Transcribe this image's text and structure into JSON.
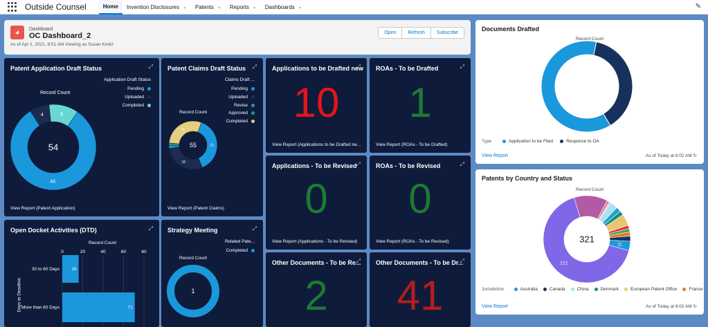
{
  "topbar": {
    "app_name": "Outside Counsel",
    "nav": [
      {
        "label": "Home",
        "active": true,
        "has_menu": false
      },
      {
        "label": "Invention Disclosures",
        "active": false,
        "has_menu": true
      },
      {
        "label": "Patents",
        "active": false,
        "has_menu": true
      },
      {
        "label": "Reports",
        "active": false,
        "has_menu": true
      },
      {
        "label": "Dashboards",
        "active": false,
        "has_menu": true
      }
    ],
    "icons": {
      "app_launcher": "app-launcher-grid-icon",
      "edit": "pencil-icon"
    }
  },
  "header": {
    "label": "Dashboard",
    "title": "OC Dashboard_2",
    "subtitle": "As of Apr 1, 2021, 8:51 AM Viewing as Susan Kreitz",
    "buttons": {
      "open": "Open",
      "refresh": "Refresh",
      "subscribe": "Subscribe"
    }
  },
  "tiles": {
    "pads": {
      "title": "Patent Application Draft Status",
      "legend_title": "Application Draft Status",
      "record_count": "Record Count",
      "total": "54",
      "link": "View Report (Patent Application)"
    },
    "pcds": {
      "title": "Patent Claims Draft Status",
      "legend_title": "Claims Draft ...",
      "record_count": "Record Count",
      "total": "55",
      "link": "View Report (Patent Claims)"
    },
    "atbd": {
      "title": "Applications to be Drafted new",
      "value": "10",
      "color": "#e3141b",
      "link": "View Report (Applications to be Drafted ne..."
    },
    "roa_drafted": {
      "title": "ROAs - To be Drafted",
      "value": "1",
      "color": "#1e7a33",
      "link": "View Report (ROAs - To be Drafted)"
    },
    "atbr": {
      "title": "Applications - To be Revised",
      "value": "0",
      "color": "#1e7a33",
      "link": "View Report (Applications - To be Revised)"
    },
    "roa_revised": {
      "title": "ROAs - To be Revised",
      "value": "0",
      "color": "#1e7a33",
      "link": "View Report (ROAs - To be Revised)"
    },
    "other_rev": {
      "title": "Other Documents - To be Re...",
      "value": "2",
      "color": "#1e7a33"
    },
    "other_dr": {
      "title": "Other Documents - To be Dr...",
      "value": "41",
      "color": "#b51d1d"
    },
    "docket": {
      "title": "Open Docket Activities (DTD)",
      "record_count": "Record Count",
      "axis_label": "Days to Deadline"
    },
    "strategy": {
      "title": "Strategy Meeting",
      "legend_title": "Related Pate...",
      "record_count": "Record Count"
    }
  },
  "docs_drafted": {
    "title": "Documents Drafted",
    "record_count": "Record Count",
    "legend_label": "Type",
    "link": "View Report",
    "asof": "As of Today at 6:02 AM"
  },
  "by_country": {
    "title": "Patents by Country and Status",
    "record_count": "Record Count",
    "total": "321",
    "legend_label": "Jurisdiction",
    "link": "View Report",
    "asof": "As of Today at 6:02 AM"
  },
  "chart_data": [
    {
      "type": "pie",
      "title": "Patent Application Draft Status",
      "legend_title": "Application Draft Status",
      "total": 54,
      "series": [
        {
          "name": "Pending",
          "value": 44,
          "color": "#1b97dc"
        },
        {
          "name": "Uploaded",
          "value": 4,
          "color": "#1c2c50"
        },
        {
          "name": "Completed",
          "value": 6,
          "color": "#6ad6d1"
        }
      ]
    },
    {
      "type": "pie",
      "title": "Patent Claims Draft Status",
      "legend_title": "Claims Draft ...",
      "total": 55,
      "series": [
        {
          "name": "Pending",
          "value": 21,
          "color": "#1b97dc"
        },
        {
          "name": "Uploaded",
          "value": 16,
          "color": "#1c2c50"
        },
        {
          "name": "Revise",
          "value": 1,
          "color": "#2b8ec9"
        },
        {
          "name": "Approved",
          "value": 1,
          "color": "#11a089"
        },
        {
          "name": "Completed",
          "value": 16,
          "color": "#e3cf7e"
        }
      ]
    },
    {
      "type": "bar",
      "title": "Open Docket Activities (DTD)",
      "xlabel": "Record Count",
      "ylabel": "Days to Deadline",
      "categories": [
        "30 to 60 Days",
        "More than 60 Days"
      ],
      "values": [
        16,
        71
      ],
      "xlim": [
        0,
        80
      ],
      "ticks": [
        0,
        20,
        40,
        60,
        80
      ],
      "color": "#1b97dc"
    },
    {
      "type": "pie",
      "title": "Strategy Meeting",
      "legend_title": "Related Pate...",
      "total": 1,
      "series": [
        {
          "name": "Completed",
          "value": 1,
          "color": "#1b97dc"
        }
      ]
    },
    {
      "type": "pie",
      "title": "Documents Drafted",
      "legend_title": "Type",
      "series": [
        {
          "name": "Application to be Filed",
          "value": 62,
          "color": "#1b97dc"
        },
        {
          "name": "Response to OA",
          "value": 38,
          "color": "#16325c"
        }
      ]
    },
    {
      "type": "pie",
      "title": "Patents by Country and Status",
      "legend_title": "Jurisdiction",
      "total": 321,
      "series": [
        {
          "name": "Australia",
          "value": 11,
          "color": "#1b97dc"
        },
        {
          "name": "Canada",
          "value": 6,
          "color": "#16325c"
        },
        {
          "name": "China",
          "value": 9,
          "color": "#a5e3f5"
        },
        {
          "name": "Denmark",
          "value": 5,
          "color": "#0f8f7a"
        },
        {
          "name": "European Patent Office",
          "value": 14,
          "color": "#e6c770"
        },
        {
          "name": "France",
          "value": 5,
          "color": "#d47e34"
        },
        {
          "name": "",
          "value": 4,
          "color": "#e2323a"
        },
        {
          "name": "",
          "value": 4,
          "color": "#4f9e45"
        },
        {
          "name": "",
          "value": 3,
          "color": "#e07ba6"
        },
        {
          "name": "",
          "value": 2,
          "color": "#f1bdd1"
        },
        {
          "name": "",
          "value": 6,
          "color": "#2a9fc9"
        },
        {
          "name": "",
          "value": 40,
          "color": "#b35aa5"
        },
        {
          "name": "",
          "value": 212,
          "color": "#7f67e8"
        }
      ],
      "labels": {
        "Australia": "11",
        "largest": "212"
      }
    }
  ]
}
